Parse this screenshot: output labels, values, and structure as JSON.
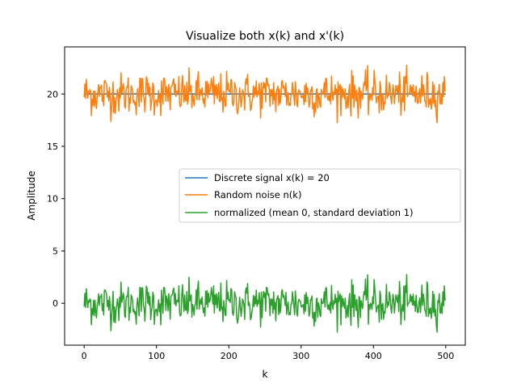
{
  "chart_data": {
    "type": "line",
    "title": "Visualize both x(k) and x'(k)",
    "xlabel": "k",
    "ylabel": "Amplitude",
    "xlim": [
      -27,
      527
    ],
    "ylim": [
      -4,
      24.5
    ],
    "xticks": [
      0,
      100,
      200,
      300,
      400,
      500
    ],
    "yticks": [
      0,
      5,
      10,
      15,
      20
    ],
    "grid": false,
    "legend": {
      "placement": "center-right"
    },
    "n_samples": 501,
    "series": [
      {
        "name": "Discrete signal x(k) = 20",
        "color": "#1f77b4",
        "constant": 20
      },
      {
        "name": "Random noise n(k)",
        "color": "#ff7f0e",
        "mean": 20,
        "std": 1,
        "range": [
          17.2,
          22.7
        ]
      },
      {
        "name": "normalized (mean 0, standard deviation 1)",
        "color": "#2ca02c",
        "mean": 0,
        "std": 1,
        "range": [
          -2.7,
          2.8
        ]
      }
    ]
  }
}
